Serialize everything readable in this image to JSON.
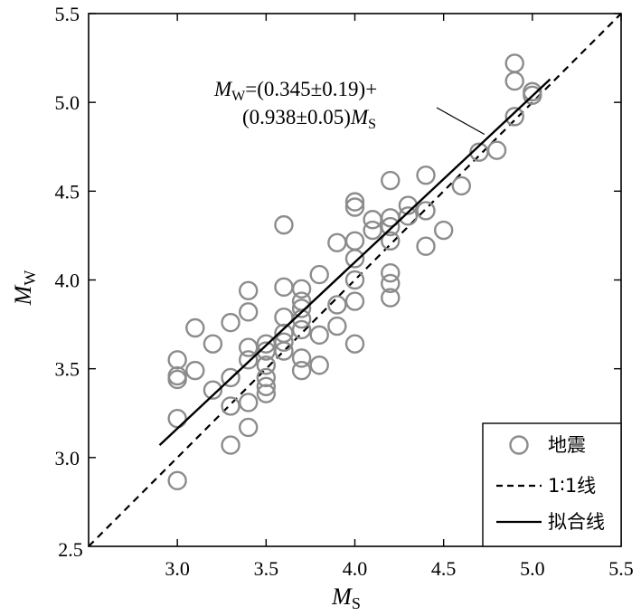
{
  "chart_data": {
    "type": "scatter",
    "xlabel": "M",
    "xlabel_sub": "S",
    "ylabel": "M",
    "ylabel_sub": "W",
    "xlim": [
      2.5,
      5.5
    ],
    "ylim": [
      2.5,
      5.5
    ],
    "x_ticks": [
      "3.0",
      "3.5",
      "4.0",
      "4.5",
      "5.0",
      "5.5"
    ],
    "y_ticks": [
      "2.5",
      "3.0",
      "3.5",
      "4.0",
      "4.5",
      "5.0",
      "5.5"
    ],
    "x_tick_values": [
      3.0,
      3.5,
      4.0,
      4.5,
      5.0,
      5.5
    ],
    "y_tick_values": [
      2.5,
      3.0,
      3.5,
      4.0,
      4.5,
      5.0,
      5.5
    ],
    "x_corner_label": "2.5",
    "grid": false,
    "legend_position": "bottom-right",
    "series": [
      {
        "name": "地震",
        "kind": "scatter",
        "marker": "open-circle",
        "color": "#8c8c8c",
        "points": [
          [
            3.0,
            3.55
          ],
          [
            3.0,
            3.46
          ],
          [
            3.0,
            3.44
          ],
          [
            3.0,
            3.22
          ],
          [
            3.0,
            2.87
          ],
          [
            3.1,
            3.73
          ],
          [
            3.1,
            3.49
          ],
          [
            3.2,
            3.64
          ],
          [
            3.2,
            3.38
          ],
          [
            3.3,
            3.76
          ],
          [
            3.3,
            3.45
          ],
          [
            3.3,
            3.29
          ],
          [
            3.3,
            3.07
          ],
          [
            3.4,
            3.94
          ],
          [
            3.4,
            3.82
          ],
          [
            3.4,
            3.62
          ],
          [
            3.4,
            3.55
          ],
          [
            3.4,
            3.31
          ],
          [
            3.4,
            3.17
          ],
          [
            3.5,
            3.64
          ],
          [
            3.5,
            3.6
          ],
          [
            3.5,
            3.52
          ],
          [
            3.5,
            3.45
          ],
          [
            3.5,
            3.4
          ],
          [
            3.5,
            3.36
          ],
          [
            3.6,
            4.31
          ],
          [
            3.6,
            3.96
          ],
          [
            3.6,
            3.79
          ],
          [
            3.6,
            3.7
          ],
          [
            3.6,
            3.65
          ],
          [
            3.6,
            3.6
          ],
          [
            3.7,
            3.95
          ],
          [
            3.7,
            3.88
          ],
          [
            3.7,
            3.84
          ],
          [
            3.7,
            3.78
          ],
          [
            3.7,
            3.72
          ],
          [
            3.7,
            3.56
          ],
          [
            3.7,
            3.49
          ],
          [
            3.8,
            4.03
          ],
          [
            3.8,
            3.69
          ],
          [
            3.8,
            3.52
          ],
          [
            3.9,
            4.21
          ],
          [
            3.9,
            3.86
          ],
          [
            3.9,
            3.74
          ],
          [
            4.0,
            4.44
          ],
          [
            4.0,
            4.41
          ],
          [
            4.0,
            4.22
          ],
          [
            4.0,
            4.12
          ],
          [
            4.0,
            4.0
          ],
          [
            4.0,
            3.88
          ],
          [
            4.0,
            3.64
          ],
          [
            4.1,
            4.34
          ],
          [
            4.1,
            4.28
          ],
          [
            4.2,
            4.56
          ],
          [
            4.2,
            4.35
          ],
          [
            4.2,
            4.3
          ],
          [
            4.2,
            4.22
          ],
          [
            4.2,
            4.04
          ],
          [
            4.2,
            3.98
          ],
          [
            4.2,
            3.9
          ],
          [
            4.3,
            4.42
          ],
          [
            4.3,
            4.36
          ],
          [
            4.4,
            4.59
          ],
          [
            4.4,
            4.39
          ],
          [
            4.4,
            4.19
          ],
          [
            4.5,
            4.28
          ],
          [
            4.6,
            4.53
          ],
          [
            4.7,
            4.72
          ],
          [
            4.8,
            4.73
          ],
          [
            4.9,
            5.22
          ],
          [
            4.9,
            5.12
          ],
          [
            4.9,
            4.92
          ],
          [
            5.0,
            5.06
          ],
          [
            5.0,
            5.04
          ]
        ]
      },
      {
        "name": "1∶1线",
        "kind": "line",
        "style": "dashed",
        "color": "#000000",
        "points": [
          [
            2.5,
            2.5
          ],
          [
            5.5,
            5.5
          ]
        ]
      },
      {
        "name": "拟合线",
        "kind": "line",
        "style": "solid",
        "color": "#000000",
        "points": [
          [
            2.9,
            3.07
          ],
          [
            5.1,
            5.13
          ]
        ]
      }
    ],
    "annotation": {
      "line1_var": "M",
      "line1_sub": "W",
      "line1_text": "=(0.345±0.19)+",
      "line2_text": "(0.938±0.05)",
      "line2_var": "M",
      "line2_sub": "S",
      "leader_target": [
        4.73,
        4.82
      ]
    }
  }
}
